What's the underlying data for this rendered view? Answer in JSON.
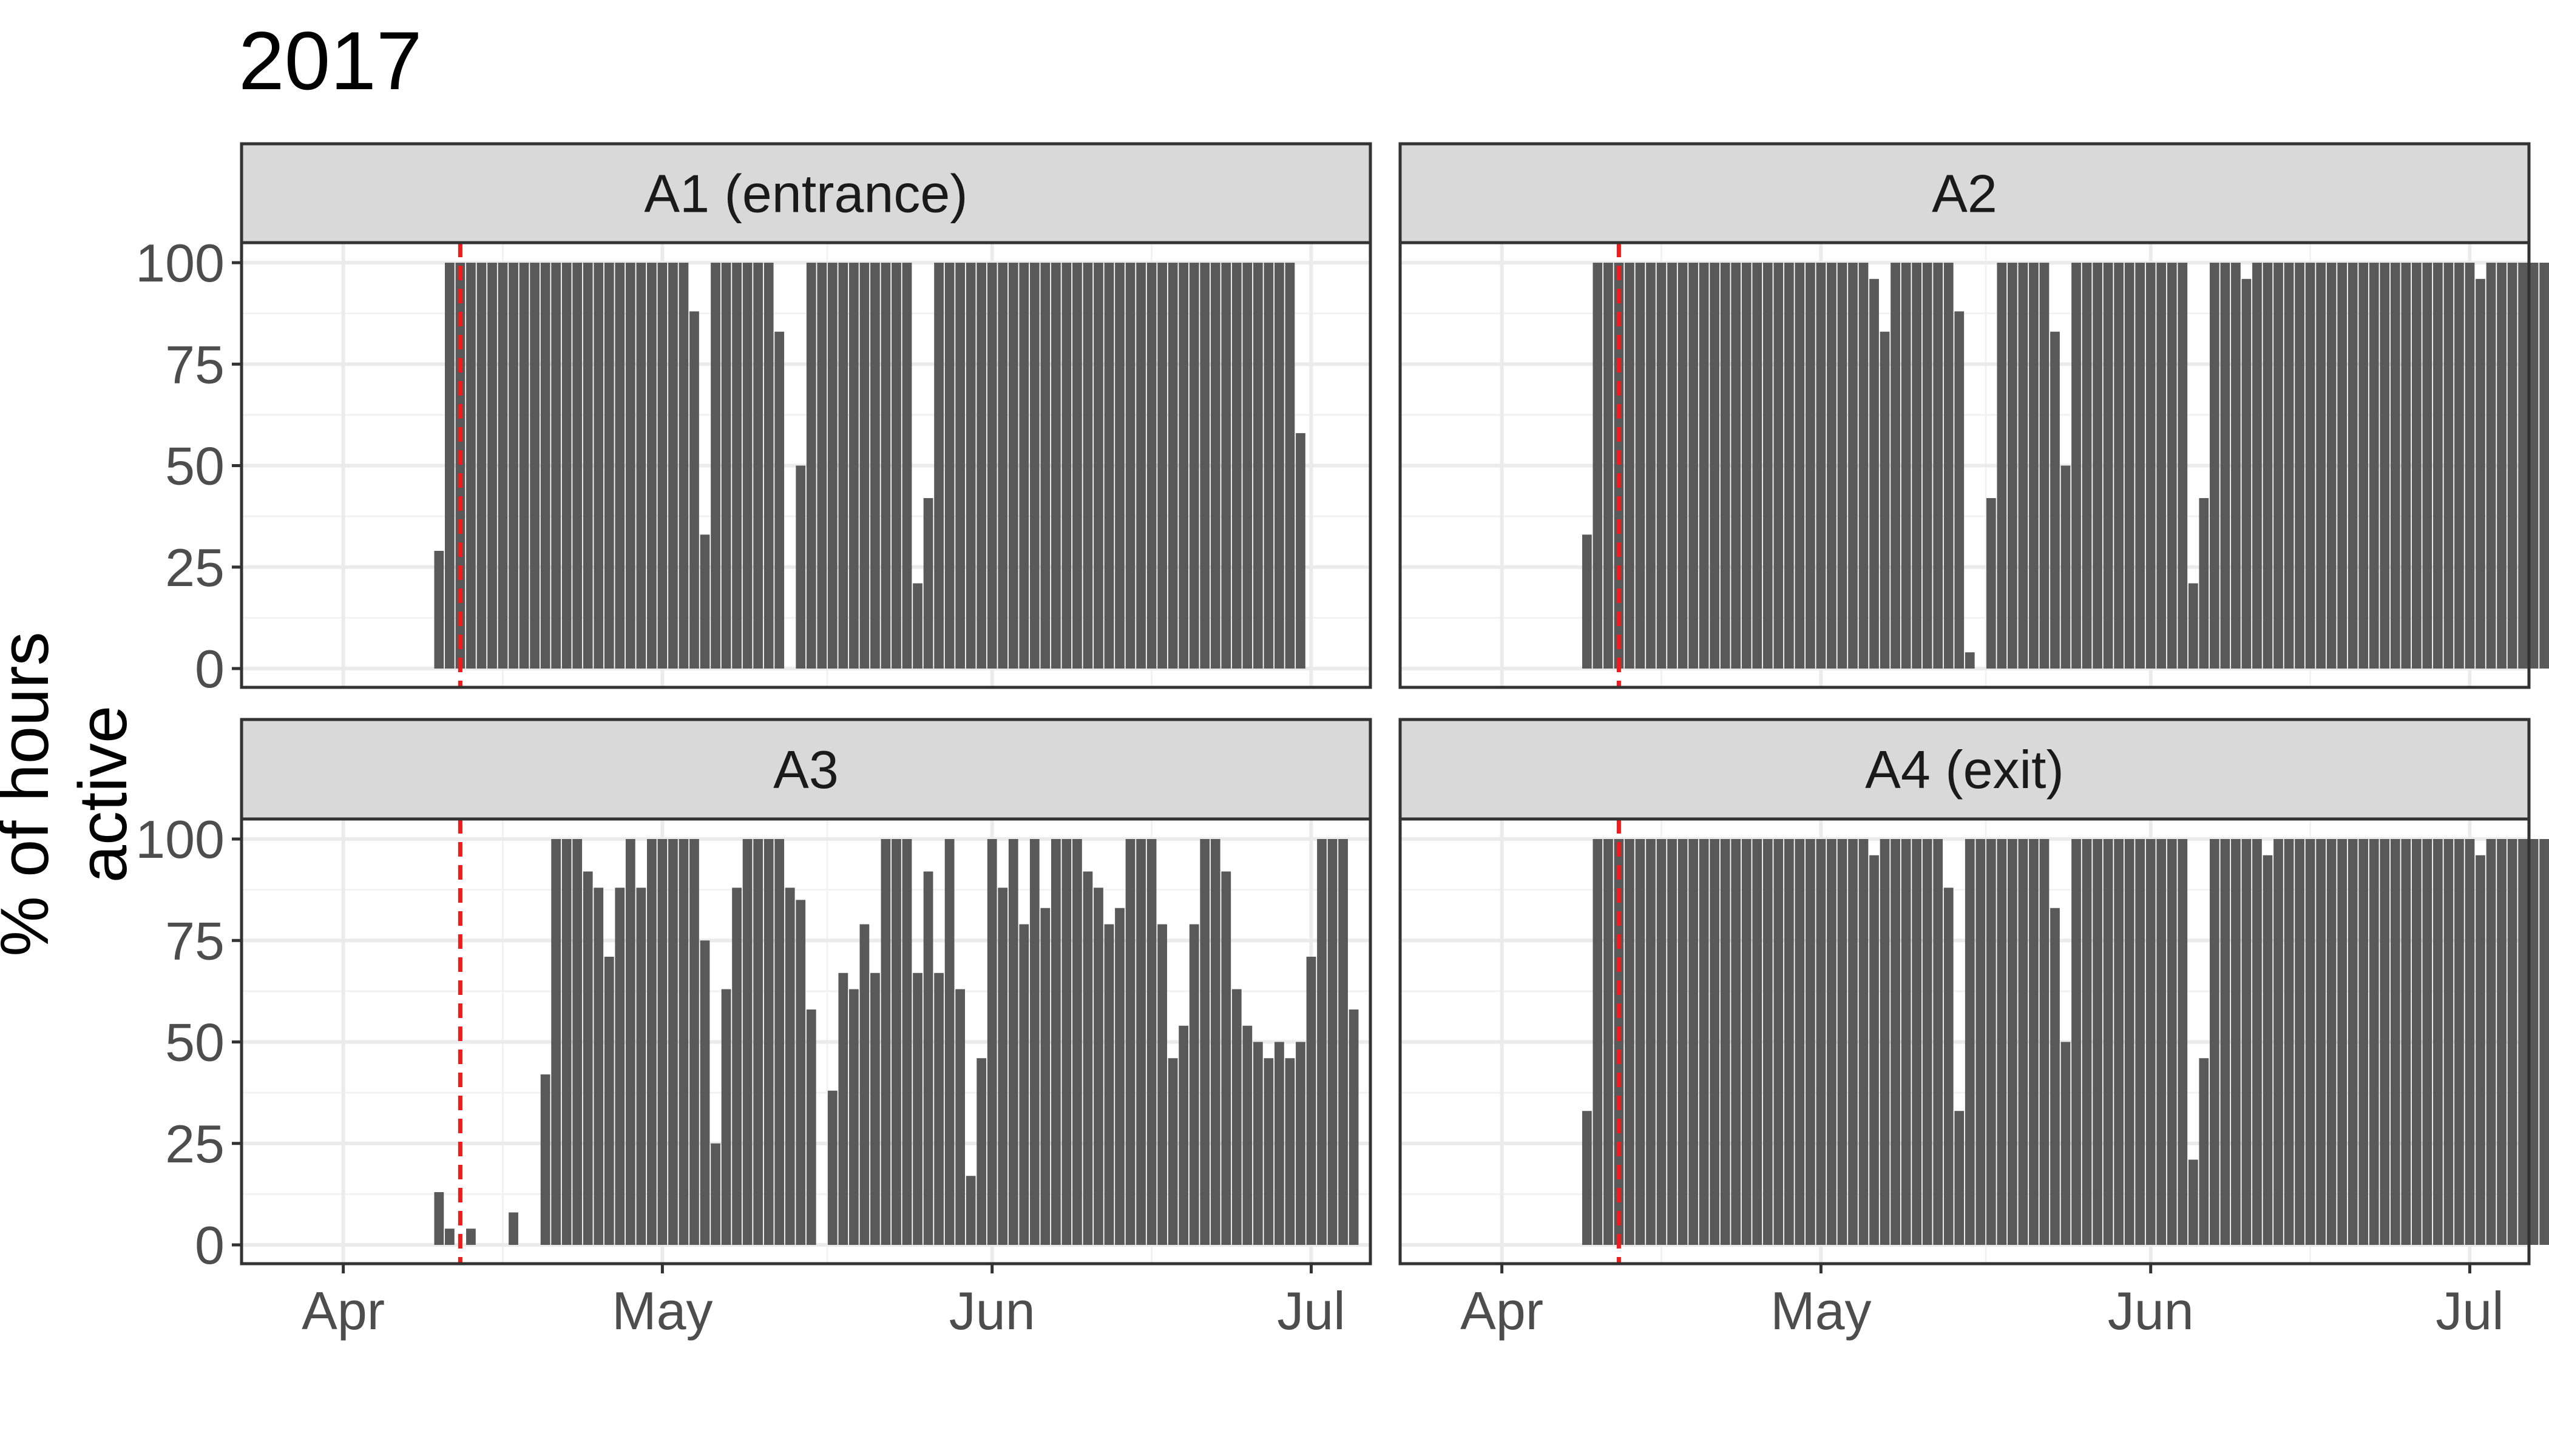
{
  "chart_data": {
    "type": "bar",
    "title": "2017",
    "ylabel": "% of hours active",
    "xlabel": "",
    "ylim": [
      0,
      100
    ],
    "y_ticks": [
      "0",
      "25",
      "50",
      "75",
      "100"
    ],
    "x_domain": [
      "2017-03-27",
      "2017-07-02"
    ],
    "x_ticks": [
      {
        "label": "Apr",
        "date": "2017-04-01"
      },
      {
        "label": "May",
        "date": "2017-05-01"
      },
      {
        "label": "Jun",
        "date": "2017-06-01"
      },
      {
        "label": "Jul",
        "date": "2017-07-01"
      }
    ],
    "grid": true,
    "reference_line": {
      "date": "2017-04-12",
      "color": "#ee1c1c",
      "style": "dashed"
    },
    "bar_color": "#595959",
    "panels": [
      {
        "name": "A1 (entrance)",
        "start_date": "2017-04-10",
        "values": [
          29,
          100,
          100,
          100,
          100,
          100,
          100,
          100,
          100,
          100,
          100,
          100,
          100,
          100,
          100,
          100,
          100,
          100,
          100,
          100,
          100,
          100,
          100,
          100,
          88,
          33,
          100,
          100,
          100,
          100,
          100,
          100,
          83,
          0,
          50,
          100,
          100,
          100,
          100,
          100,
          100,
          100,
          100,
          100,
          100,
          21,
          42,
          100,
          100,
          100,
          100,
          100,
          100,
          100,
          100,
          100,
          100,
          100,
          100,
          100,
          100,
          100,
          100,
          100,
          100,
          100,
          100,
          100,
          100,
          100,
          100,
          100,
          100,
          100,
          100,
          100,
          100,
          100,
          100,
          100,
          100,
          58
        ]
      },
      {
        "name": "A2",
        "start_date": "2017-04-09",
        "values": [
          33,
          100,
          100,
          100,
          100,
          100,
          100,
          100,
          100,
          100,
          100,
          100,
          100,
          100,
          100,
          100,
          100,
          100,
          100,
          100,
          100,
          100,
          100,
          100,
          100,
          100,
          100,
          96,
          83,
          100,
          100,
          100,
          100,
          100,
          100,
          88,
          4,
          0,
          42,
          100,
          100,
          100,
          100,
          100,
          83,
          50,
          100,
          100,
          100,
          100,
          100,
          100,
          100,
          100,
          100,
          100,
          100,
          21,
          42,
          100,
          100,
          100,
          96,
          100,
          100,
          100,
          100,
          100,
          100,
          100,
          100,
          100,
          100,
          100,
          100,
          100,
          100,
          100,
          100,
          100,
          100,
          100,
          100,
          100,
          96,
          100,
          100,
          100,
          100,
          100,
          100,
          100,
          100,
          58
        ]
      },
      {
        "name": "A3",
        "start_date": "2017-04-09",
        "values": [
          0,
          13,
          4,
          0,
          4,
          0,
          0,
          0,
          8,
          0,
          0,
          42,
          100,
          100,
          100,
          92,
          88,
          71,
          88,
          100,
          88,
          100,
          100,
          100,
          100,
          100,
          75,
          25,
          63,
          88,
          100,
          100,
          100,
          100,
          88,
          85,
          58,
          0,
          38,
          67,
          63,
          79,
          67,
          100,
          100,
          100,
          67,
          92,
          67,
          100,
          63,
          17,
          46,
          100,
          88,
          100,
          79,
          100,
          83,
          100,
          100,
          100,
          92,
          88,
          79,
          83,
          100,
          100,
          100,
          79,
          46,
          54,
          79,
          100,
          100,
          92,
          63,
          54,
          50,
          46,
          50,
          46,
          50,
          71,
          100,
          100,
          100,
          58
        ]
      },
      {
        "name": "A4 (exit)",
        "start_date": "2017-04-09",
        "values": [
          33,
          100,
          100,
          100,
          100,
          100,
          100,
          100,
          100,
          100,
          100,
          100,
          100,
          100,
          100,
          100,
          100,
          100,
          100,
          100,
          100,
          100,
          100,
          100,
          100,
          100,
          100,
          96,
          100,
          100,
          100,
          100,
          100,
          100,
          88,
          33,
          100,
          100,
          100,
          100,
          100,
          100,
          100,
          100,
          83,
          50,
          100,
          100,
          100,
          100,
          100,
          100,
          100,
          100,
          100,
          100,
          100,
          21,
          46,
          100,
          100,
          100,
          100,
          100,
          96,
          100,
          100,
          100,
          100,
          100,
          100,
          100,
          100,
          100,
          100,
          100,
          100,
          100,
          100,
          100,
          100,
          100,
          100,
          100,
          96,
          100,
          100,
          100,
          100,
          100,
          100,
          100,
          100,
          58
        ]
      }
    ]
  }
}
